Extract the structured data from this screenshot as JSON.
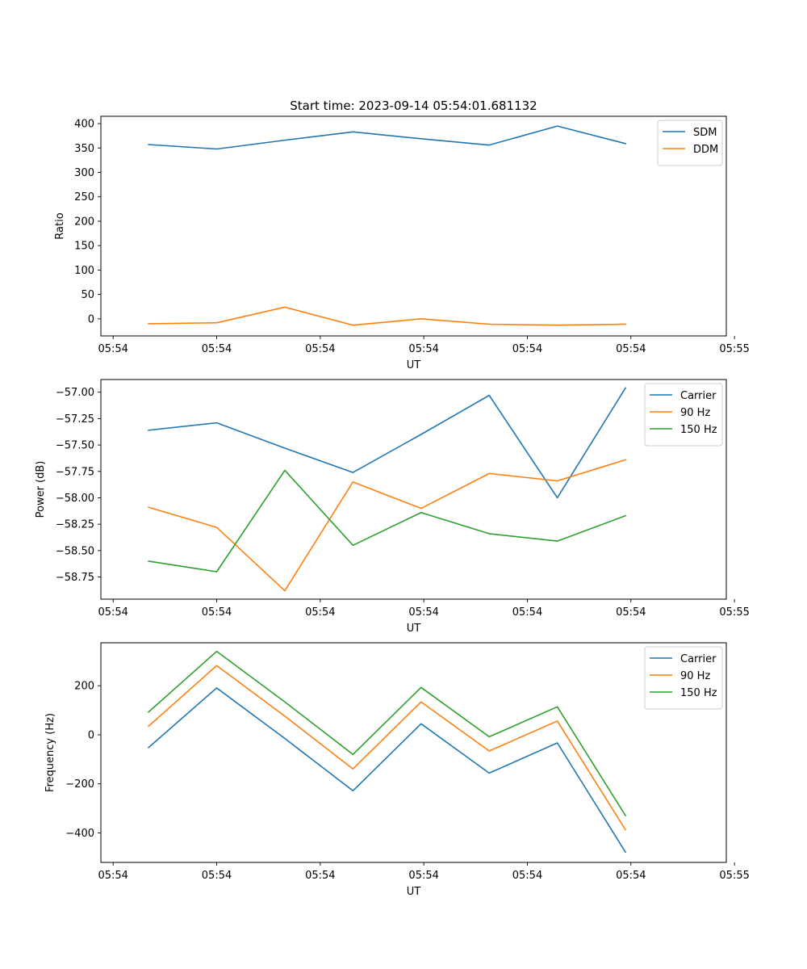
{
  "figure_title": "Start time: 2023-09-14 05:54:01.681132",
  "chart_data": [
    {
      "type": "line",
      "title": "Start time: 2023-09-14 05:54:01.681132",
      "xlabel": "UT",
      "ylabel": "Ratio",
      "x": [
        1,
        2,
        3,
        4,
        5,
        6,
        7,
        8
      ],
      "xlim": [
        0.3,
        9.48
      ],
      "xticks": [
        0.48,
        2.0,
        3.52,
        5.04,
        6.56,
        8.08,
        9.6
      ],
      "xtick_labels": [
        "05:54",
        "05:54",
        "05:54",
        "05:54",
        "05:54",
        "05:54",
        "05:55"
      ],
      "ylim": [
        -35,
        415
      ],
      "yticks": [
        0,
        50,
        100,
        150,
        200,
        250,
        300,
        350,
        400
      ],
      "ytick_labels": [
        "0",
        "50",
        "100",
        "150",
        "200",
        "250",
        "300",
        "350",
        "400"
      ],
      "legend_position": "top-right",
      "series": [
        {
          "name": "SDM",
          "color": "#1f77b4",
          "values": [
            357,
            348,
            366,
            383,
            369,
            356,
            395,
            359
          ]
        },
        {
          "name": "DDM",
          "color": "#ff7f0e",
          "values": [
            -10,
            -8,
            24,
            -13,
            0,
            -11,
            -13,
            -11
          ]
        }
      ]
    },
    {
      "type": "line",
      "xlabel": "UT",
      "ylabel": "Power (dB)",
      "x": [
        1,
        2,
        3,
        4,
        5,
        6,
        7,
        8
      ],
      "xlim": [
        0.3,
        9.48
      ],
      "xticks": [
        0.48,
        2.0,
        3.52,
        5.04,
        6.56,
        8.08,
        9.6
      ],
      "xtick_labels": [
        "05:54",
        "05:54",
        "05:54",
        "05:54",
        "05:54",
        "05:54",
        "05:55"
      ],
      "ylim": [
        -58.96,
        -56.88
      ],
      "yticks": [
        -58.75,
        -58.5,
        -58.25,
        -58.0,
        -57.75,
        -57.5,
        -57.25,
        -57.0
      ],
      "ytick_labels": [
        "−58.75",
        "−58.50",
        "−58.25",
        "−58.00",
        "−57.75",
        "−57.50",
        "−57.25",
        "−57.00"
      ],
      "legend_position": "top-right",
      "series": [
        {
          "name": "Carrier",
          "color": "#1f77b4",
          "values": [
            -57.36,
            -57.29,
            -57.53,
            -57.76,
            -57.4,
            -57.03,
            -58.0,
            -56.96
          ]
        },
        {
          "name": "90 Hz",
          "color": "#ff7f0e",
          "values": [
            -58.09,
            -58.28,
            -58.88,
            -57.85,
            -58.1,
            -57.77,
            -57.84,
            -57.64
          ]
        },
        {
          "name": "150 Hz",
          "color": "#2ca02c",
          "values": [
            -58.6,
            -58.7,
            -57.74,
            -58.45,
            -58.14,
            -58.34,
            -58.41,
            -58.17
          ]
        }
      ]
    },
    {
      "type": "line",
      "xlabel": "UT",
      "ylabel": "Frequency (Hz)",
      "x": [
        1,
        2,
        3,
        4,
        5,
        6,
        7,
        8
      ],
      "xlim": [
        0.3,
        9.48
      ],
      "xticks": [
        0.48,
        2.0,
        3.52,
        5.04,
        6.56,
        8.08,
        9.6
      ],
      "xtick_labels": [
        "05:54",
        "05:54",
        "05:54",
        "05:54",
        "05:54",
        "05:54",
        "05:55"
      ],
      "ylim": [
        -520,
        375
      ],
      "yticks": [
        -400,
        -200,
        0,
        200
      ],
      "ytick_labels": [
        "−400",
        "−200",
        "0",
        "200"
      ],
      "legend_position": "top-right",
      "series": [
        {
          "name": "Carrier",
          "color": "#1f77b4",
          "values": [
            -52,
            191,
            -15,
            -228,
            45,
            -156,
            -33,
            -478
          ]
        },
        {
          "name": "90 Hz",
          "color": "#ff7f0e",
          "values": [
            35,
            282,
            76,
            -139,
            134,
            -66,
            56,
            -387
          ]
        },
        {
          "name": "150 Hz",
          "color": "#2ca02c",
          "values": [
            93,
            340,
            134,
            -80,
            193,
            -8,
            114,
            -329
          ]
        }
      ]
    }
  ]
}
